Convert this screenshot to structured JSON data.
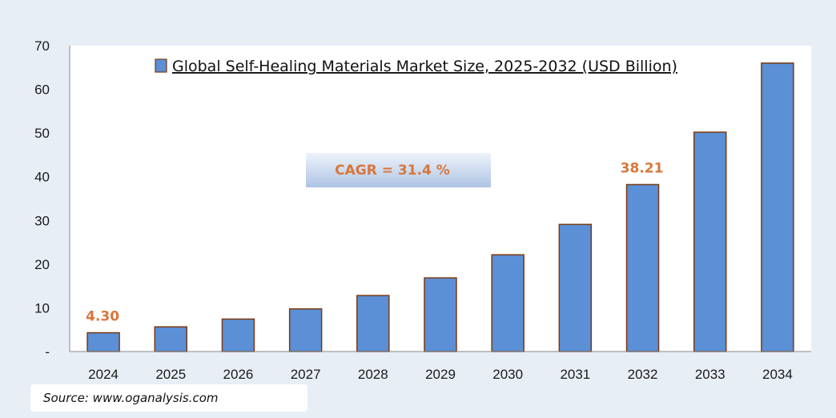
{
  "chart_data": {
    "type": "bar",
    "title": "Global Self-Healing Materials Market Size, 2025-2032 (USD Billion)",
    "categories": [
      "2024",
      "2025",
      "2026",
      "2027",
      "2028",
      "2029",
      "2030",
      "2031",
      "2032",
      "2033",
      "2034"
    ],
    "series": [
      {
        "name": "Global Self-Healing Materials Market Size, 2025-2032 (USD Billion)",
        "values": [
          4.3,
          5.65,
          7.43,
          9.76,
          12.82,
          16.85,
          22.14,
          29.09,
          38.21,
          50.2,
          66.0
        ]
      }
    ],
    "ylim": [
      0,
      70
    ],
    "yticks": [
      "-",
      "10",
      "20",
      "30",
      "40",
      "50",
      "60",
      "70"
    ],
    "data_labels": [
      {
        "index": 0,
        "text": "4.30"
      },
      {
        "index": 8,
        "text": "38.21"
      }
    ],
    "annotation": "CAGR = 31.4 %",
    "grid": false,
    "legend_position": "top",
    "colors": {
      "bar_fill": "#5b8fd6",
      "bar_stroke": "#7a3a10",
      "label": "#d9763a",
      "background": "#e8eef6",
      "plot_background": "#ffffff"
    }
  },
  "source": "Source: www.oganalysis.com"
}
